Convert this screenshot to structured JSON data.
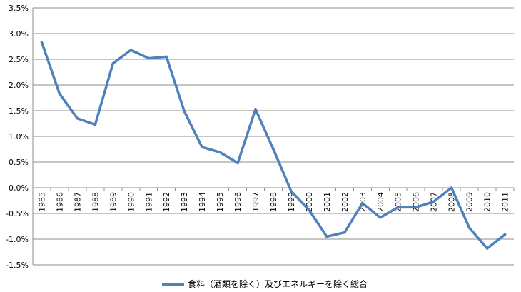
{
  "chart_data": {
    "type": "line",
    "title": "",
    "xlabel": "",
    "ylabel": "",
    "ylim": [
      -1.5,
      3.5
    ],
    "yticks": [
      "3.5%",
      "3.0%",
      "2.5%",
      "2.0%",
      "1.5%",
      "1.0%",
      "0.5%",
      "0.0%",
      "-0.5%",
      "-1.0%",
      "-1.5%"
    ],
    "ytick_values": [
      3.5,
      3.0,
      2.5,
      2.0,
      1.5,
      1.0,
      0.5,
      0.0,
      -0.5,
      -1.0,
      -1.5
    ],
    "categories": [
      "1985",
      "1986",
      "1987",
      "1988",
      "1989",
      "1990",
      "1991",
      "1992",
      "1993",
      "1994",
      "1995",
      "1996",
      "1997",
      "1998",
      "1999",
      "2000",
      "2001",
      "2002",
      "2003",
      "2004",
      "2005",
      "2006",
      "2007",
      "2008",
      "2009",
      "2010",
      "2011"
    ],
    "series": [
      {
        "name": "食料（酒類を除く）及びエネルギーを除く総合",
        "color": "#4f81bd",
        "values": [
          2.83,
          1.83,
          1.35,
          1.23,
          2.42,
          2.68,
          2.52,
          2.55,
          1.49,
          0.79,
          0.69,
          0.48,
          1.53,
          0.75,
          -0.07,
          -0.43,
          -0.95,
          -0.87,
          -0.3,
          -0.58,
          -0.38,
          -0.38,
          -0.27,
          0.0,
          -0.78,
          -1.18,
          -0.91
        ]
      }
    ],
    "grid": true,
    "legend_position": "bottom"
  }
}
